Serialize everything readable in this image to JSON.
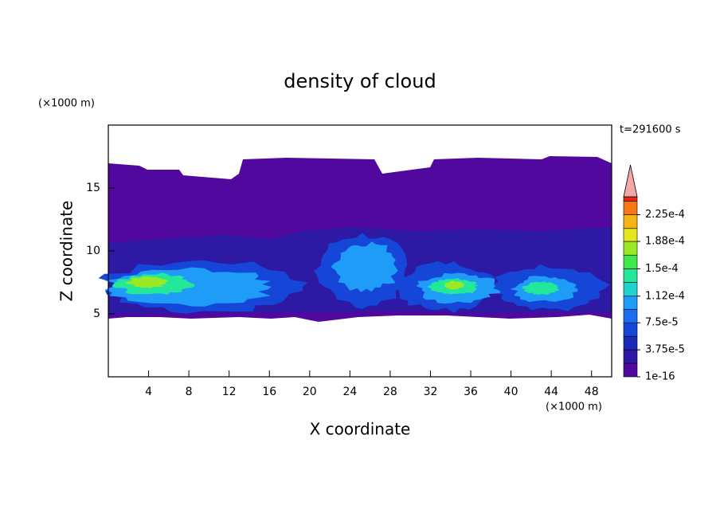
{
  "chart_data": {
    "type": "contour",
    "title": "density of cloud",
    "x_label": "X coordinate",
    "y_label": "Z coordinate",
    "x_unit": "(×1000 m)",
    "y_unit": "(×1000 m)",
    "annotation": "t=291600 s",
    "xlim": [
      0,
      50
    ],
    "xticks": [
      4,
      8,
      12,
      16,
      20,
      24,
      28,
      32,
      36,
      40,
      44,
      48
    ],
    "ylim": [
      0,
      20
    ],
    "yticks": [
      5,
      10,
      15
    ],
    "levels": [
      1e-16,
      1.875e-05,
      3.75e-05,
      5.625e-05,
      7.5e-05,
      9.375e-05,
      0.000112,
      0.000131,
      0.00015,
      0.000169,
      0.000188,
      0.000206,
      0.000225,
      0.000244
    ],
    "colors": [
      "#50089f",
      "#2d19a3",
      "#1a2ab8",
      "#1546d8",
      "#1a6ef0",
      "#1f9cf7",
      "#1ed3d0",
      "#23e89a",
      "#40e84a",
      "#9be825",
      "#e6e61e",
      "#f5b414",
      "#f57814",
      "#e82814"
    ],
    "overflow_color": "#f4a8a8",
    "clim": [
      0,
      0.00025
    ],
    "colorbar_ticks": [
      {
        "value": 1e-16,
        "label": "1e-16"
      },
      {
        "value": 3.75e-05,
        "label": "3.75e-5"
      },
      {
        "value": 7.5e-05,
        "label": "7.5e-5"
      },
      {
        "value": 0.000112,
        "label": "1.12e-4"
      },
      {
        "value": 0.00015,
        "label": "1.5e-4"
      },
      {
        "value": 0.000188,
        "label": "1.88e-4"
      },
      {
        "value": 0.000225,
        "label": "2.25e-4"
      }
    ]
  }
}
